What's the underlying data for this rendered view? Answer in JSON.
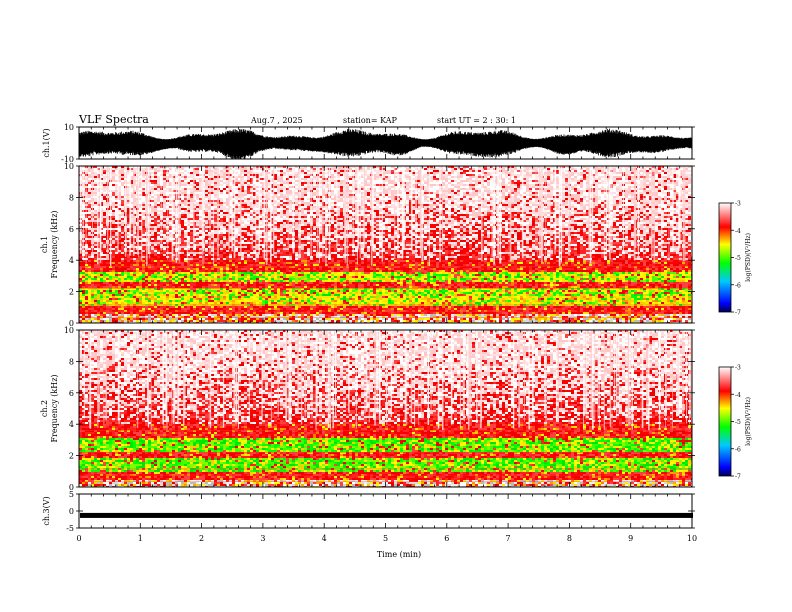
{
  "header": {
    "title": "VLF Spectra",
    "date": "Aug.7 , 2025",
    "station": "station= KAP",
    "start": "start UT = 2 : 30: 1"
  },
  "chart_data": [
    {
      "type": "line",
      "name": "ch1-waveform",
      "ylabel": "ch.1(V)",
      "ylim": [
        -10,
        10
      ],
      "yticks": [
        "10",
        "-10"
      ],
      "xlim": [
        0,
        10
      ]
    },
    {
      "type": "heatmap",
      "name": "ch1-spectrogram",
      "ylabel": "ch.1\nFrequency (kHz)",
      "ylabel_lines": [
        "ch.1",
        "Frequency (kHz)"
      ],
      "ylim": [
        0,
        10
      ],
      "yticks": [
        "0",
        "2",
        "4",
        "6",
        "8",
        "10"
      ],
      "xlim": [
        0,
        10
      ],
      "bands_khz": [
        {
          "from": 0.0,
          "to": 0.6,
          "level": "mixed"
        },
        {
          "from": 0.6,
          "to": 1.1,
          "level": "red"
        },
        {
          "from": 1.1,
          "to": 1.7,
          "level": "yellow"
        },
        {
          "from": 1.7,
          "to": 2.2,
          "level": "green-yellow"
        },
        {
          "from": 2.2,
          "to": 2.6,
          "level": "red"
        },
        {
          "from": 2.6,
          "to": 3.3,
          "level": "green-yellow"
        },
        {
          "from": 3.3,
          "to": 4.0,
          "level": "red"
        },
        {
          "from": 4.0,
          "to": 10.0,
          "level": "red-white"
        }
      ]
    },
    {
      "type": "heatmap",
      "name": "ch2-spectrogram",
      "ylabel": "ch.2\nFrequency (kHz)",
      "ylabel_lines": [
        "ch.2",
        "Frequency (kHz)"
      ],
      "ylim": [
        0,
        10
      ],
      "yticks": [
        "0",
        "2",
        "4",
        "6",
        "8",
        "10"
      ],
      "xlim": [
        0,
        10
      ],
      "bands_khz": [
        {
          "from": 0.0,
          "to": 0.5,
          "level": "mixed"
        },
        {
          "from": 0.5,
          "to": 0.9,
          "level": "red"
        },
        {
          "from": 0.9,
          "to": 1.8,
          "level": "green"
        },
        {
          "from": 1.8,
          "to": 2.2,
          "level": "red"
        },
        {
          "from": 2.2,
          "to": 3.1,
          "level": "green"
        },
        {
          "from": 3.1,
          "to": 4.0,
          "level": "red"
        },
        {
          "from": 4.0,
          "to": 10.0,
          "level": "red-white"
        }
      ]
    },
    {
      "type": "line",
      "name": "ch3-signal",
      "ylabel": "ch.3(V)",
      "ylim": [
        -5,
        5
      ],
      "yticks": [
        "5",
        "0",
        "-5"
      ],
      "value_approx": -1.3,
      "xlim": [
        0,
        10
      ],
      "xlabel": "Time (min)",
      "xticks": [
        "0",
        "1",
        "2",
        "3",
        "4",
        "5",
        "6",
        "7",
        "8",
        "9",
        "10"
      ]
    }
  ],
  "colorbar": {
    "label": "log(PSD)(V²/Hz)",
    "ticks": [
      "-3",
      "-4",
      "-5",
      "-6",
      "-7"
    ],
    "range": [
      -7,
      -3
    ],
    "colors": [
      "#000060",
      "#0000ff",
      "#00aaff",
      "#00ff00",
      "#ffff00",
      "#ff0000",
      "#ffffff"
    ]
  }
}
